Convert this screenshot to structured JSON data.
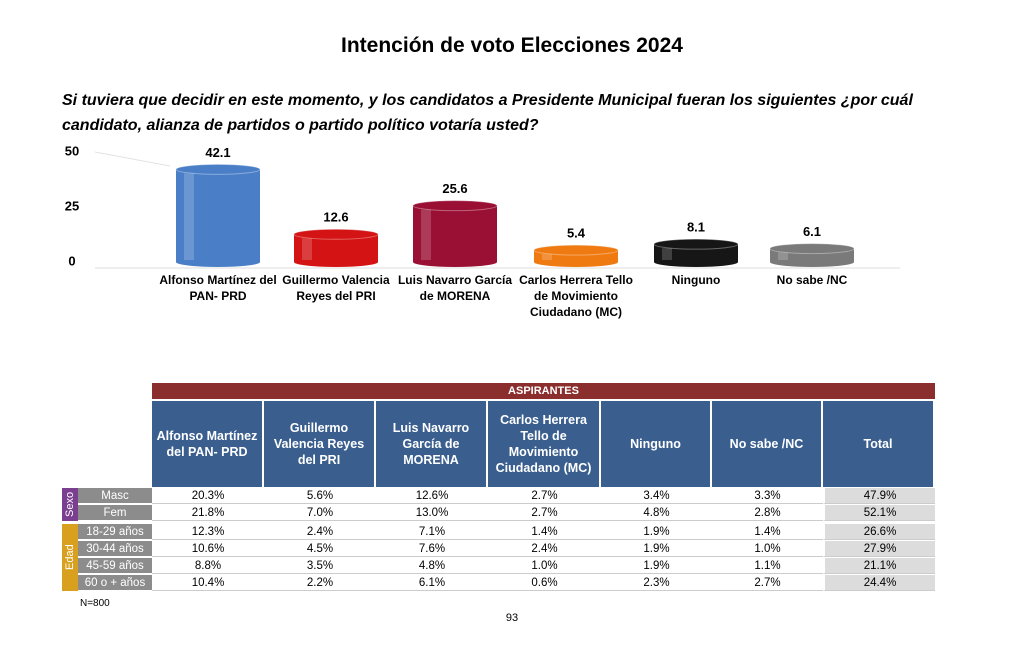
{
  "title": "Intención de voto Elecciones 2024",
  "question": "Si tuviera que decidir en este momento, y los candidatos a Presidente Municipal fueran los siguientes ¿por cuál candidato, alianza de partidos o partido político votaría usted?",
  "chart_data": {
    "type": "bar",
    "categories": [
      "Alfonso Martínez del PAN- PRD",
      "Guillermo Valencia Reyes del PRI",
      "Luis Navarro García de MORENA",
      "Carlos Herrera Tello de Movimiento Ciudadano (MC)",
      "Ninguno",
      "No sabe /NC"
    ],
    "values": [
      42.1,
      12.6,
      25.6,
      5.4,
      8.1,
      6.1
    ],
    "colors": [
      "#4a7fc8",
      "#d41414",
      "#9a1035",
      "#f07a12",
      "#161616",
      "#7a7a7a"
    ],
    "ylim": [
      0,
      50
    ],
    "yticks": [
      0,
      25,
      50
    ]
  },
  "table": {
    "banner": "ASPIRANTES",
    "columns": [
      "Alfonso Martínez del PAN- PRD",
      "Guillermo Valencia Reyes del PRI",
      "Luis Navarro García de MORENA",
      "Carlos Herrera Tello de Movimiento Ciudadano (MC)",
      "Ninguno",
      "No sabe /NC",
      "Total"
    ],
    "groups": [
      {
        "label": "Sexo",
        "color": "#7b3f8f",
        "rows": [
          {
            "label": "Masc",
            "cells": [
              "20.3%",
              "5.6%",
              "12.6%",
              "2.7%",
              "3.4%",
              "3.3%",
              "47.9%"
            ]
          },
          {
            "label": "Fem",
            "cells": [
              "21.8%",
              "7.0%",
              "13.0%",
              "2.7%",
              "4.8%",
              "2.8%",
              "52.1%"
            ]
          }
        ]
      },
      {
        "label": "Edad",
        "color": "#d9a020",
        "rows": [
          {
            "label": "18-29 años",
            "cells": [
              "12.3%",
              "2.4%",
              "7.1%",
              "1.4%",
              "1.9%",
              "1.4%",
              "26.6%"
            ]
          },
          {
            "label": "30-44 años",
            "cells": [
              "10.6%",
              "4.5%",
              "7.6%",
              "2.4%",
              "1.9%",
              "1.0%",
              "27.9%"
            ]
          },
          {
            "label": "45-59 años",
            "cells": [
              "8.8%",
              "3.5%",
              "4.8%",
              "1.0%",
              "1.9%",
              "1.1%",
              "21.1%"
            ]
          },
          {
            "label": "60 o + años",
            "cells": [
              "10.4%",
              "2.2%",
              "6.1%",
              "0.6%",
              "2.3%",
              "2.7%",
              "24.4%"
            ]
          }
        ]
      }
    ]
  },
  "note": "N=800",
  "page": "93"
}
